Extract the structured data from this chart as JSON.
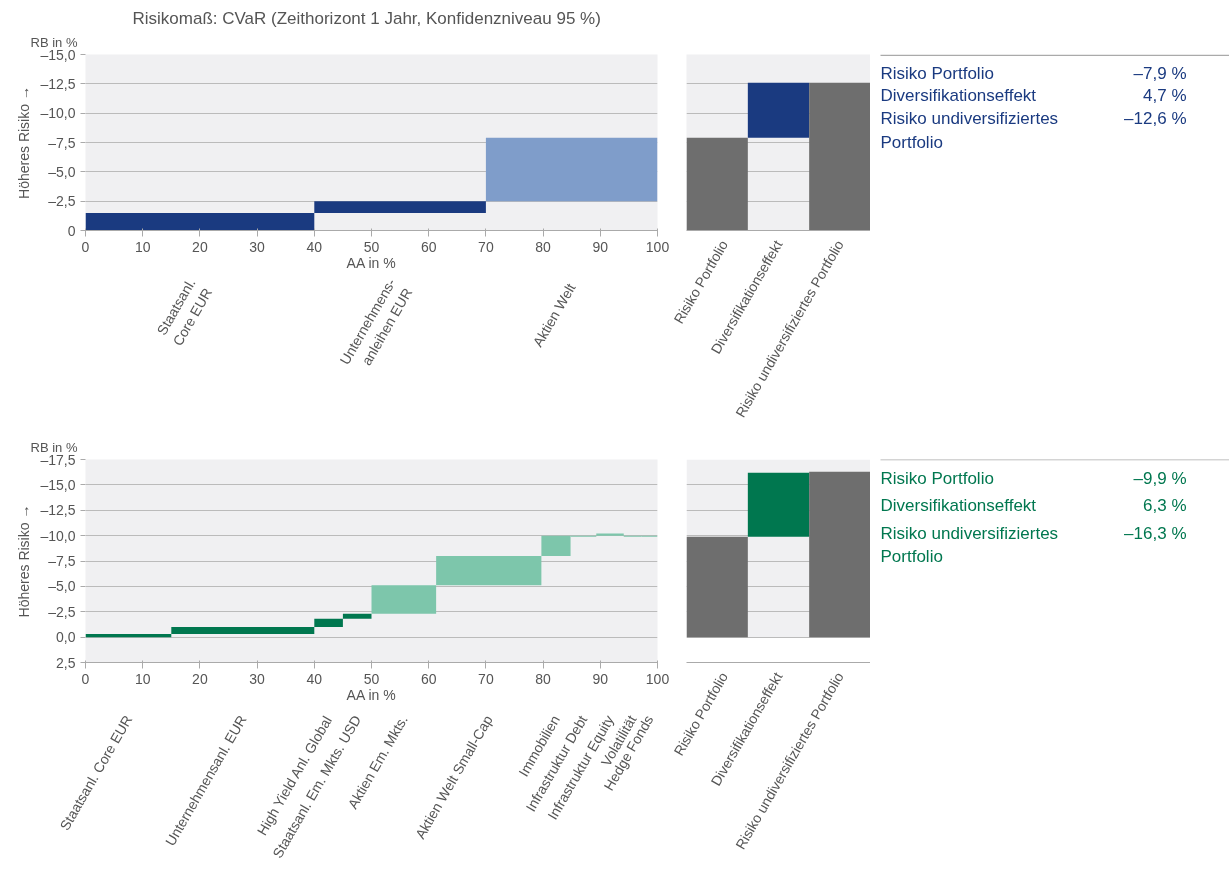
{
  "chart_data": [
    {
      "type": "histogram",
      "title": "Risikomaß: CVaR (Zeithorizont 1 Jahr, Konfidenzniveau 95 %)",
      "xlabel": "AA in %",
      "ylabel": "Höheres Risiko →",
      "annotations": [
        "RB in %"
      ],
      "categories": [
        "Staatsanl.\nCore EUR",
        "Unternehmens-\nanleihen EUR",
        "Aktien Welt"
      ],
      "bins": [
        0,
        40,
        70,
        100
      ],
      "base": [
        0,
        -1.5,
        -2.5
      ],
      "values": [
        -1.5,
        -1.0,
        -5.4
      ],
      "colors": [
        "#1a3a80",
        "#1a3a80",
        "#7f9dca"
      ],
      "xlim": [
        0,
        100
      ],
      "xticks": [
        0,
        10,
        20,
        30,
        40,
        50,
        60,
        70,
        80,
        90,
        100
      ],
      "ylim": [
        0,
        -15
      ],
      "yticks": [
        0,
        {
          "value": -2.5,
          "label": "–2,5"
        },
        {
          "value": -5,
          "label": "–5,0"
        },
        {
          "value": -7.5,
          "label": "–7,5"
        },
        {
          "value": -10,
          "label": "–10,0"
        },
        {
          "value": -12.5,
          "label": "–12,5"
        },
        {
          "value": -15,
          "label": "–15,0"
        }
      ],
      "grid": "y"
    },
    {
      "type": "bar",
      "categories": [
        "Risiko Portfolio",
        "Diversifikationseffekt",
        "Risiko undiversifiziertes Portfolio"
      ],
      "base": [
        0,
        -7.9,
        0
      ],
      "values": [
        -7.9,
        -4.7,
        -12.6
      ],
      "colors": [
        "#6e6e6e",
        "#1a3a80",
        "#6e6e6e"
      ],
      "ylim": [
        0,
        -15
      ],
      "yticks": [
        0,
        -2.5,
        -5,
        -7.5,
        -10,
        -12.5,
        -15
      ],
      "grid": "y",
      "tick_labels": "x"
    },
    {
      "type": "other",
      "color": "#1a3a80",
      "annotations": [
        "Risiko Portfolio",
        "–7,9 %",
        "Diversifikationseffekt",
        "4,7 %",
        "Risiko undiversifiziertes\nPortfolio",
        "–12,6 %"
      ]
    },
    {
      "type": "histogram",
      "xlabel": "AA in %",
      "ylabel": "Höheres Risiko →",
      "annotations": [
        "RB in %"
      ],
      "categories": [
        "Staatsanl. Core EUR",
        "Unternehmensanl. EUR",
        "High Yield Anl. Global",
        "Staatsanl. Em. Mkts. USD",
        "Aktien Em. Mkts.",
        "Aktien Welt Small-Cap",
        "Immobilien",
        "Infrastruktur Debt",
        "Infrastruktur Equity",
        "Volatilität",
        "Hedge Fonds"
      ],
      "bins": [
        0,
        15,
        40,
        45,
        50,
        61.3,
        79.7,
        84.8,
        89.3,
        94.1,
        97.2,
        100
      ],
      "base": [
        0,
        -0.3,
        -1.0,
        -1.8,
        -2.3,
        -5.1,
        -8.0,
        -10.0,
        -10.0,
        -10.0,
        -10.0
      ],
      "values": [
        -0.3,
        -0.7,
        -0.8,
        -0.5,
        -2.8,
        -2.9,
        -2.0,
        0.1,
        -0.2,
        0.1,
        0.1
      ],
      "colors": [
        "#00774f",
        "#00774f",
        "#00774f",
        "#00774f",
        "#7dc6ab",
        "#7dc6ab",
        "#7dc6ab",
        "#7dc6ab",
        "#7dc6ab",
        "#7dc6ab",
        "#7dc6ab"
      ],
      "xlim": [
        0,
        100
      ],
      "xticks": [
        0,
        10,
        20,
        30,
        40,
        50,
        60,
        70,
        80,
        90,
        100
      ],
      "ylim": [
        2.5,
        -17.5
      ],
      "yticks": [
        {
          "value": 2.5,
          "label": "2,5"
        },
        {
          "value": 0,
          "label": "0,0"
        },
        {
          "value": -2.5,
          "label": "–2,5"
        },
        {
          "value": -5,
          "label": "–5,0"
        },
        {
          "value": -7.5,
          "label": "–7,5"
        },
        {
          "value": -10,
          "label": "–10,0"
        },
        {
          "value": -12.5,
          "label": "–12,5"
        },
        {
          "value": -15,
          "label": "–15,0"
        },
        {
          "value": -17.5,
          "label": "–17,5"
        }
      ],
      "grid": "y"
    },
    {
      "type": "bar",
      "categories": [
        "Risiko Portfolio",
        "Diversifikationseffekt",
        "Risiko undiversifiziertes Portfolio"
      ],
      "base": [
        0,
        -9.9,
        0
      ],
      "values": [
        -9.9,
        -6.3,
        -16.3
      ],
      "colors": [
        "#6e6e6e",
        "#00774f",
        "#6e6e6e"
      ],
      "ylim": [
        2.5,
        -17.5
      ],
      "bands": [
        {
          "axis": "y",
          "from": 0,
          "to": -17.5,
          "color": "#f0f0f2"
        }
      ],
      "yticks": [
        0,
        -2.5,
        -5,
        -7.5,
        -10,
        -12.5,
        -15,
        -17.5
      ],
      "grid": "y",
      "tick_labels": "x"
    },
    {
      "type": "other",
      "color": "#00774f",
      "annotations": [
        "Risiko Portfolio",
        "–9,9 %",
        "Diversifikationseffekt",
        "6,3 %",
        "Risiko undiversifiziertes\nPortfolio",
        "–16,3 %"
      ]
    }
  ]
}
